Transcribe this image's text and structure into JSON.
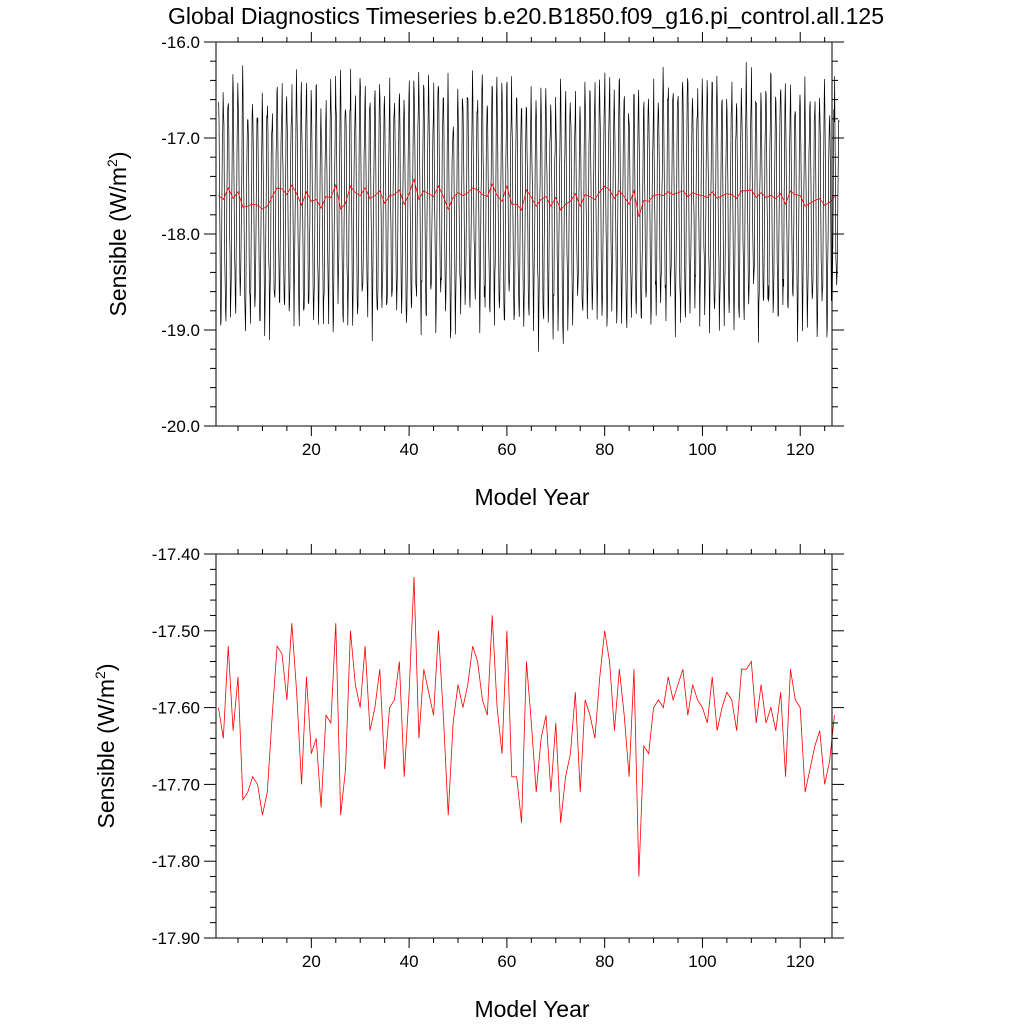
{
  "title": "Global Diagnostics Timeseries b.e20.B1850.f09_g16.pi_control.all.125",
  "chart_data": [
    {
      "type": "line",
      "xlabel": "Model Year",
      "ylabel": "Sensible (W/m",
      "ylabel_sup": "2",
      "ylabel_close": ")",
      "xlim": [
        0.5,
        126.5
      ],
      "ylim": [
        -20.0,
        -16.0
      ],
      "xticks": [
        20,
        40,
        60,
        80,
        100,
        120
      ],
      "xtick_labels": [
        "20",
        "40",
        "60",
        "80",
        "100",
        "120"
      ],
      "yticks": [
        -20.0,
        -19.0,
        -18.0,
        -17.0,
        -16.0
      ],
      "ytick_labels": [
        "-20.0",
        "-19.0",
        "-18.0",
        "-17.0",
        "-16.0"
      ],
      "grid": false,
      "series": [
        {
          "color": "#000000",
          "x_start": 1.042,
          "x_step": 0.08333,
          "monthly_mean": -17.62,
          "monthly_amplitude": 1.05,
          "values": []
        },
        {
          "color": "#ff0000",
          "x_start": 1,
          "x_step": 1,
          "values": [
            -17.6,
            -17.64,
            -17.52,
            -17.63,
            -17.56,
            -17.72,
            -17.71,
            -17.69,
            -17.7,
            -17.74,
            -17.71,
            -17.61,
            -17.52,
            -17.53,
            -17.59,
            -17.49,
            -17.58,
            -17.7,
            -17.56,
            -17.66,
            -17.64,
            -17.73,
            -17.61,
            -17.62,
            -17.49,
            -17.74,
            -17.68,
            -17.5,
            -17.57,
            -17.6,
            -17.52,
            -17.63,
            -17.6,
            -17.55,
            -17.68,
            -17.6,
            -17.59,
            -17.54,
            -17.69,
            -17.58,
            -17.43,
            -17.64,
            -17.55,
            -17.58,
            -17.61,
            -17.5,
            -17.61,
            -17.74,
            -17.62,
            -17.57,
            -17.6,
            -17.57,
            -17.52,
            -17.54,
            -17.59,
            -17.61,
            -17.48,
            -17.6,
            -17.66,
            -17.5,
            -17.69,
            -17.69,
            -17.75,
            -17.54,
            -17.62,
            -17.71,
            -17.64,
            -17.61,
            -17.71,
            -17.62,
            -17.75,
            -17.69,
            -17.66,
            -17.58,
            -17.71,
            -17.59,
            -17.61,
            -17.64,
            -17.56,
            -17.5,
            -17.54,
            -17.63,
            -17.55,
            -17.61,
            -17.69,
            -17.55,
            -17.82,
            -17.65,
            -17.66,
            -17.6,
            -17.59,
            -17.6,
            -17.56,
            -17.59,
            -17.57,
            -17.55,
            -17.61,
            -17.57,
            -17.59,
            -17.6,
            -17.62,
            -17.56,
            -17.63,
            -17.6,
            -17.58,
            -17.59,
            -17.63,
            -17.55,
            -17.55,
            -17.54,
            -17.62,
            -17.57,
            -17.62,
            -17.6,
            -17.63,
            -17.58,
            -17.69,
            -17.55,
            -17.59,
            -17.6,
            -17.71,
            -17.68,
            -17.65,
            -17.63,
            -17.7,
            -17.67,
            -17.61
          ]
        }
      ]
    },
    {
      "type": "line",
      "xlabel": "Model Year",
      "ylabel": "Sensible (W/m",
      "ylabel_sup": "2",
      "ylabel_close": ")",
      "xlim": [
        0.5,
        126.5
      ],
      "ylim": [
        -17.9,
        -17.4
      ],
      "xticks": [
        20,
        40,
        60,
        80,
        100,
        120
      ],
      "xtick_labels": [
        "20",
        "40",
        "60",
        "80",
        "100",
        "120"
      ],
      "yticks": [
        -17.9,
        -17.8,
        -17.7,
        -17.6,
        -17.5,
        -17.4
      ],
      "ytick_labels": [
        "-17.90",
        "-17.80",
        "-17.70",
        "-17.60",
        "-17.50",
        "-17.40"
      ],
      "grid": false,
      "series": [
        {
          "color": "#ff0000",
          "x_start": 1,
          "x_step": 1,
          "values": [
            -17.6,
            -17.64,
            -17.52,
            -17.63,
            -17.56,
            -17.72,
            -17.71,
            -17.69,
            -17.7,
            -17.74,
            -17.71,
            -17.61,
            -17.52,
            -17.53,
            -17.59,
            -17.49,
            -17.58,
            -17.7,
            -17.56,
            -17.66,
            -17.64,
            -17.73,
            -17.61,
            -17.62,
            -17.49,
            -17.74,
            -17.68,
            -17.5,
            -17.57,
            -17.6,
            -17.52,
            -17.63,
            -17.6,
            -17.55,
            -17.68,
            -17.6,
            -17.59,
            -17.54,
            -17.69,
            -17.58,
            -17.43,
            -17.64,
            -17.55,
            -17.58,
            -17.61,
            -17.5,
            -17.61,
            -17.74,
            -17.62,
            -17.57,
            -17.6,
            -17.57,
            -17.52,
            -17.54,
            -17.59,
            -17.61,
            -17.48,
            -17.6,
            -17.66,
            -17.5,
            -17.69,
            -17.69,
            -17.75,
            -17.54,
            -17.62,
            -17.71,
            -17.64,
            -17.61,
            -17.71,
            -17.62,
            -17.75,
            -17.69,
            -17.66,
            -17.58,
            -17.71,
            -17.59,
            -17.61,
            -17.64,
            -17.56,
            -17.5,
            -17.54,
            -17.63,
            -17.55,
            -17.61,
            -17.69,
            -17.55,
            -17.82,
            -17.65,
            -17.66,
            -17.6,
            -17.59,
            -17.6,
            -17.56,
            -17.59,
            -17.57,
            -17.55,
            -17.61,
            -17.57,
            -17.59,
            -17.6,
            -17.62,
            -17.56,
            -17.63,
            -17.6,
            -17.58,
            -17.59,
            -17.63,
            -17.55,
            -17.55,
            -17.54,
            -17.62,
            -17.57,
            -17.62,
            -17.6,
            -17.63,
            -17.58,
            -17.69,
            -17.55,
            -17.59,
            -17.6,
            -17.71,
            -17.68,
            -17.65,
            -17.63,
            -17.7,
            -17.67,
            -17.61
          ]
        }
      ]
    }
  ]
}
